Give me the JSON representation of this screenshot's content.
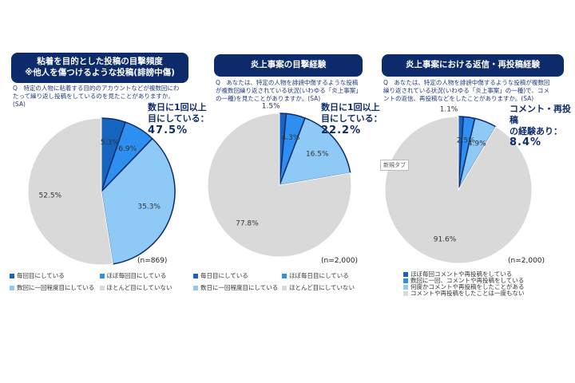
{
  "chart_data": [
    {
      "type": "pie",
      "title": "粘着を目的とした投稿の目撃頻度\n※他人を傷つけるような投稿(誹謗中傷)",
      "question": "Q　特定の人物に粘着する目的のアカウントなどが複数回にわたって繰り返し投稿をしているのを見たことがありますか。(SA)",
      "annotation": [
        "数日に1回以上",
        "目にしている：",
        "47.5%"
      ],
      "sample": "(n=869)",
      "categories": [
        "毎回目にしている",
        "ほぼ毎回目にしている",
        "数回に一回程度目にしている",
        "ほとんど目にしていない"
      ],
      "values": [
        5.3,
        6.9,
        35.3,
        52.5
      ],
      "value_labels": [
        "5.3%",
        "6.9%",
        "35.3%",
        "52.5%"
      ],
      "colors": [
        "#1565c0",
        "#2e8ff0",
        "#8fcaf7",
        "#d9d9d9"
      ]
    },
    {
      "type": "pie",
      "title": "炎上事案の目撃経験",
      "question": "Q　あなたは、特定の人物を誹謗中傷するような投稿が複数回繰り返されている状況(いわゆる「炎上事案」の一種)を見たことがありますか。(SA)",
      "annotation": [
        "数日に1回以上",
        "目にしている：",
        "22.2%"
      ],
      "sample": "(n=2,000)",
      "categories": [
        "毎日目にしている",
        "ほぼ毎日目にしている",
        "数日に一回程度目にしている",
        "ほとんど目にしていない"
      ],
      "values": [
        1.5,
        4.3,
        16.5,
        77.8
      ],
      "value_labels": [
        "1.5%",
        "4.3%",
        "16.5%",
        "77.8%"
      ],
      "colors": [
        "#1565c0",
        "#2e8ff0",
        "#8fcaf7",
        "#d9d9d9"
      ]
    },
    {
      "type": "pie",
      "title": "炎上事案における返信・再投稿経験",
      "question": "Q　あなたは、特定の人物を誹謗中傷するような投稿が複数回繰り返されている状況(いわゆる「炎上事案」の一種)で、コメントの返信、再投稿などをしたことがありますか。(SA)",
      "annotation": [
        "コメント・再投稿",
        "の経験あり：",
        "8.4%"
      ],
      "sample": "(n=2,000)",
      "categories": [
        "ほぼ毎回コメントや再投稿をしている",
        "数回に一回、コメントや再投稿をしている",
        "何度かコメントや再投稿をしたことがある",
        "コメントや再投稿をしたことは一度もない"
      ],
      "values": [
        1.1,
        2.5,
        4.9,
        91.6
      ],
      "value_labels": [
        "1.1%",
        "2.5%",
        "4.9%",
        "91.6%"
      ],
      "colors": [
        "#1565c0",
        "#2e8ff0",
        "#8fcaf7",
        "#d9d9d9"
      ]
    }
  ],
  "tooltip": "新規タブ"
}
